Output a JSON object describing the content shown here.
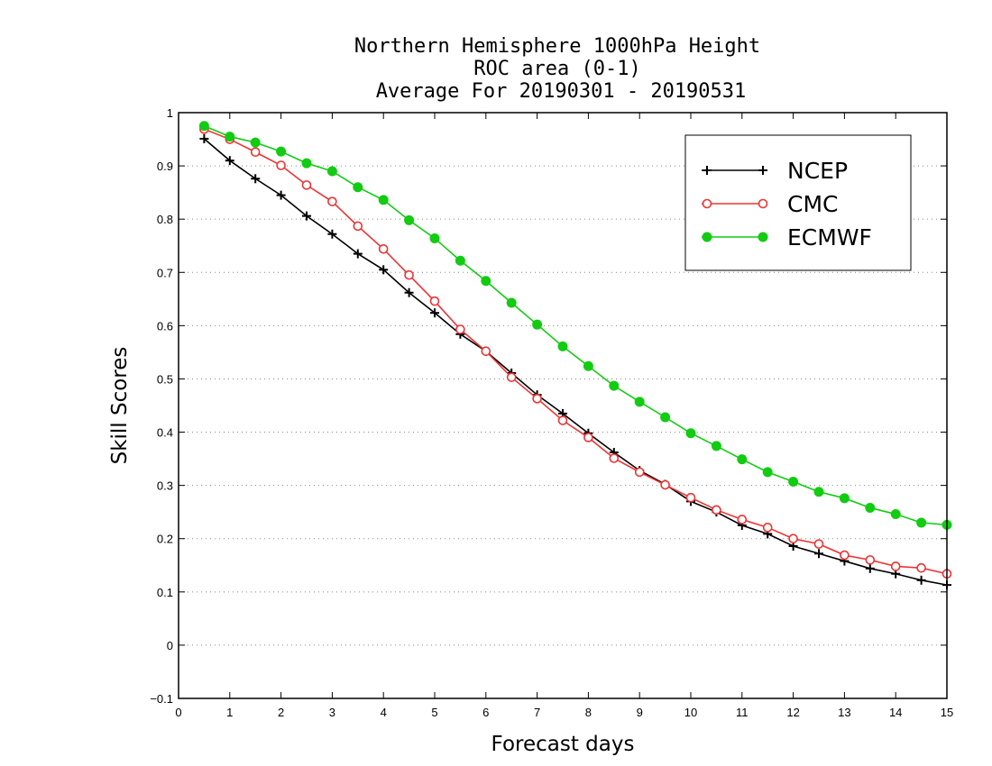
{
  "chart_data": {
    "type": "line",
    "title_lines": [
      "Northern Hemisphere 1000hPa Height",
      "ROC area (0-1)",
      "Average For 20190301 - 20190531"
    ],
    "xlabel": "Forecast days",
    "ylabel": "Skill Scores",
    "xlim": [
      0,
      15
    ],
    "ylim": [
      -0.1,
      1
    ],
    "x_ticks": [
      "0",
      "1",
      "2",
      "3",
      "4",
      "5",
      "6",
      "7",
      "8",
      "9",
      "10",
      "11",
      "12",
      "13",
      "14",
      "15"
    ],
    "y_ticks": [
      "−0.1",
      "0",
      "0.1",
      "0.2",
      "0.3",
      "0.4",
      "0.5",
      "0.6",
      "0.7",
      "0.8",
      "0.9",
      "1"
    ],
    "y_tick_values": [
      -0.1,
      0,
      0.1,
      0.2,
      0.3,
      0.4,
      0.5,
      0.6,
      0.7,
      0.8,
      0.9,
      1
    ],
    "grid": "dotted horizontal",
    "legend_position": "top-right",
    "x": [
      0.5,
      1,
      1.5,
      2,
      2.5,
      3,
      3.5,
      4,
      4.5,
      5,
      5.5,
      6,
      6.5,
      7,
      7.5,
      8,
      8.5,
      9,
      9.5,
      10,
      10.5,
      11,
      11.5,
      12,
      12.5,
      13,
      13.5,
      14,
      14.5,
      15
    ],
    "series": [
      {
        "name": "NCEP",
        "color": "#000000",
        "marker": "plus",
        "values": [
          0.951,
          0.91,
          0.876,
          0.845,
          0.806,
          0.772,
          0.735,
          0.705,
          0.662,
          0.624,
          0.584,
          0.552,
          0.511,
          0.47,
          0.435,
          0.398,
          0.362,
          0.328,
          0.302,
          0.27,
          0.25,
          0.225,
          0.209,
          0.186,
          0.172,
          0.158,
          0.144,
          0.134,
          0.122,
          0.113
        ]
      },
      {
        "name": "CMC",
        "color": "#ee3333",
        "marker": "open-circle",
        "values": [
          0.969,
          0.95,
          0.926,
          0.901,
          0.864,
          0.833,
          0.787,
          0.744,
          0.695,
          0.646,
          0.593,
          0.552,
          0.503,
          0.463,
          0.422,
          0.39,
          0.351,
          0.325,
          0.301,
          0.277,
          0.254,
          0.236,
          0.221,
          0.2,
          0.19,
          0.169,
          0.16,
          0.148,
          0.145,
          0.134
        ]
      },
      {
        "name": "ECMWF",
        "color": "#11cc11",
        "marker": "filled-circle",
        "values": [
          0.975,
          0.955,
          0.944,
          0.927,
          0.905,
          0.89,
          0.86,
          0.836,
          0.798,
          0.764,
          0.722,
          0.684,
          0.643,
          0.602,
          0.561,
          0.524,
          0.487,
          0.457,
          0.428,
          0.398,
          0.374,
          0.349,
          0.325,
          0.307,
          0.288,
          0.276,
          0.258,
          0.246,
          0.23,
          0.226
        ]
      }
    ]
  }
}
